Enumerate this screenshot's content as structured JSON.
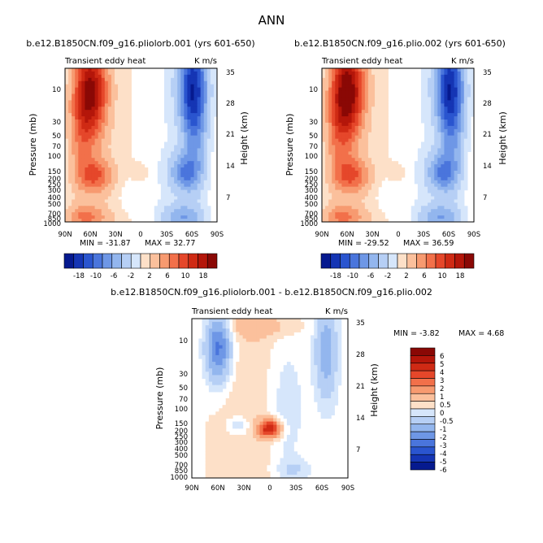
{
  "figure_title": "ANN",
  "colors": {
    "pos": [
      "#fde0c8",
      "#fbc09c",
      "#f79a70",
      "#f2704a",
      "#e5472a",
      "#cf2a14",
      "#b4160a",
      "#8a0805"
    ],
    "neg": [
      "#d6e6fb",
      "#b6cff5",
      "#93b6ee",
      "#6e97e6",
      "#4a75dc",
      "#2a55cf",
      "#1535b4",
      "#061a8f"
    ],
    "contour_line": "#000000"
  },
  "chart_data": [
    {
      "type": "contour",
      "title": "b.e12.B1850CN.f09_g16.pliolorb.001 (yrs 601-650)",
      "left_label": "Transient eddy heat",
      "right_label": "K m/s",
      "ylabel": "Pressure (mb)",
      "y2label": "Height (km)",
      "x_ticks": [
        "90N",
        "60N",
        "30N",
        "0",
        "30S",
        "60S",
        "90S"
      ],
      "y_ticks": [
        "10",
        "30",
        "50",
        "70",
        "100",
        "150",
        "200",
        "250",
        "300",
        "400",
        "500",
        "700",
        "850",
        "1000"
      ],
      "y2_ticks": [
        "35",
        "28",
        "21",
        "14",
        "7"
      ],
      "min_label": "MIN = -31.87",
      "max_label": "MAX = 32.77",
      "min_value": -31.87,
      "max_value": 32.77,
      "features": [
        {
          "lat": 60,
          "p": 12,
          "value": 32.0
        },
        {
          "lat": 60,
          "p": 200,
          "value": 18.0
        },
        {
          "lat": 55,
          "p": 850,
          "value": 14.0
        },
        {
          "lat": -60,
          "p": 12,
          "value": -31.0
        },
        {
          "lat": -60,
          "p": 200,
          "value": -18.0
        },
        {
          "lat": -55,
          "p": 850,
          "value": -14.0
        }
      ]
    },
    {
      "type": "contour",
      "title": "b.e12.B1850CN.f09_g16.plio.002 (yrs 601-650)",
      "left_label": "Transient eddy heat",
      "right_label": "K m/s",
      "ylabel": "Pressure (mb)",
      "y2label": "Height (km)",
      "x_ticks": [
        "90N",
        "60N",
        "30N",
        "0",
        "30S",
        "60S",
        "90S"
      ],
      "y_ticks": [
        "10",
        "30",
        "50",
        "70",
        "100",
        "150",
        "200",
        "250",
        "300",
        "400",
        "500",
        "700",
        "850",
        "1000"
      ],
      "y2_ticks": [
        "35",
        "28",
        "21",
        "14",
        "7"
      ],
      "min_label": "MIN = -29.52",
      "max_label": "MAX = 36.59",
      "min_value": -29.52,
      "max_value": 36.59,
      "features": [
        {
          "lat": 60,
          "p": 12,
          "value": 36.0
        },
        {
          "lat": 60,
          "p": 200,
          "value": 20.0
        },
        {
          "lat": 55,
          "p": 850,
          "value": 15.0
        },
        {
          "lat": -60,
          "p": 12,
          "value": -29.0
        },
        {
          "lat": -60,
          "p": 200,
          "value": -17.0
        },
        {
          "lat": -55,
          "p": 850,
          "value": -14.0
        }
      ]
    },
    {
      "type": "contour",
      "title": "b.e12.B1850CN.f09_g16.pliolorb.001 - b.e12.B1850CN.f09_g16.plio.002",
      "left_label": "Transient eddy heat",
      "right_label": "K m/s",
      "ylabel": "Pressure (mb)",
      "y2label": "Height (km)",
      "x_ticks": [
        "90N",
        "60N",
        "30N",
        "0",
        "30S",
        "60S",
        "90S"
      ],
      "y_ticks": [
        "10",
        "30",
        "50",
        "70",
        "100",
        "150",
        "200",
        "250",
        "300",
        "400",
        "500",
        "700",
        "850",
        "1000"
      ],
      "y2_ticks": [
        "35",
        "28",
        "21",
        "14",
        "7"
      ],
      "min_label": "MIN = -3.82",
      "max_label": "MAX = 4.68",
      "min_value": -3.82,
      "max_value": 4.68,
      "features": [
        {
          "lat": 65,
          "p": 12,
          "value": -3.8
        },
        {
          "lat": -70,
          "p": 15,
          "value": -2.2
        },
        {
          "lat": 0,
          "p": 200,
          "value": 4.6
        },
        {
          "lat": -15,
          "p": 900,
          "value": -1.2
        }
      ]
    }
  ],
  "colorbar_top": {
    "levels": [
      "-18",
      "-10",
      "-6",
      "-2",
      "2",
      "6",
      "10",
      "18"
    ]
  },
  "colorbar_diff": {
    "levels": [
      "6",
      "5",
      "4",
      "3",
      "2",
      "1",
      "0.5",
      "0",
      "-0.5",
      "-1",
      "-2",
      "-3",
      "-4",
      "-5",
      "-6"
    ]
  }
}
